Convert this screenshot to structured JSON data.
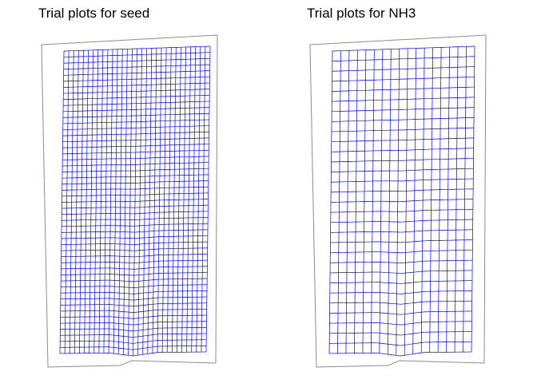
{
  "panels": [
    {
      "title": "Trial plots for seed",
      "grid": {
        "columns": 30,
        "rows": 50
      }
    },
    {
      "title": "Trial plots for NH3",
      "grid": {
        "columns": 17,
        "rows": 30
      }
    }
  ],
  "colors": {
    "boundary": "#8c8c8c",
    "grid": "#0000ff",
    "grid_inner": "#1a1a60",
    "background": "#ffffff"
  }
}
